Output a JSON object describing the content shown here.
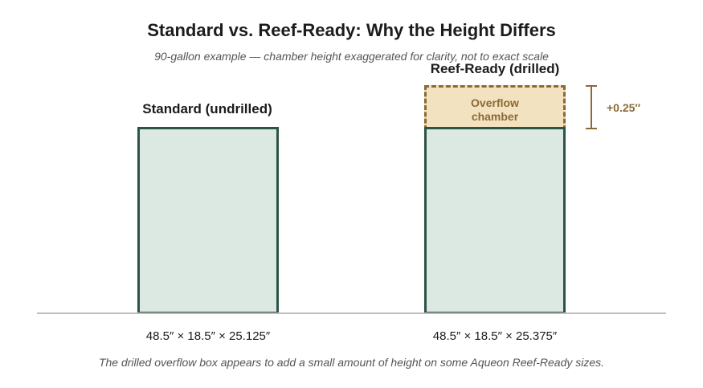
{
  "title": "Standard vs. Reef-Ready: Why the Height Differs",
  "subtitle": "90-gallon example — chamber height exaggerated for clarity, not to exact scale",
  "standard": {
    "label": "Standard (undrilled)",
    "dimensions": "48.5″ × 18.5″ × 25.125″"
  },
  "reef_ready": {
    "label": "Reef-Ready (drilled)",
    "dimensions": "48.5″ × 18.5″ × 25.375″",
    "overflow_label": "Overflow chamber",
    "height_delta": "+0.25″"
  },
  "footnote": "The drilled overflow box appears to add a small amount of height on some Aqueon Reef-Ready sizes.",
  "colors": {
    "tank_border": "#2a5545",
    "tank_fill": "#dce9e3",
    "overflow_border": "#8a6a35",
    "overflow_fill": "#f3e2c0"
  }
}
